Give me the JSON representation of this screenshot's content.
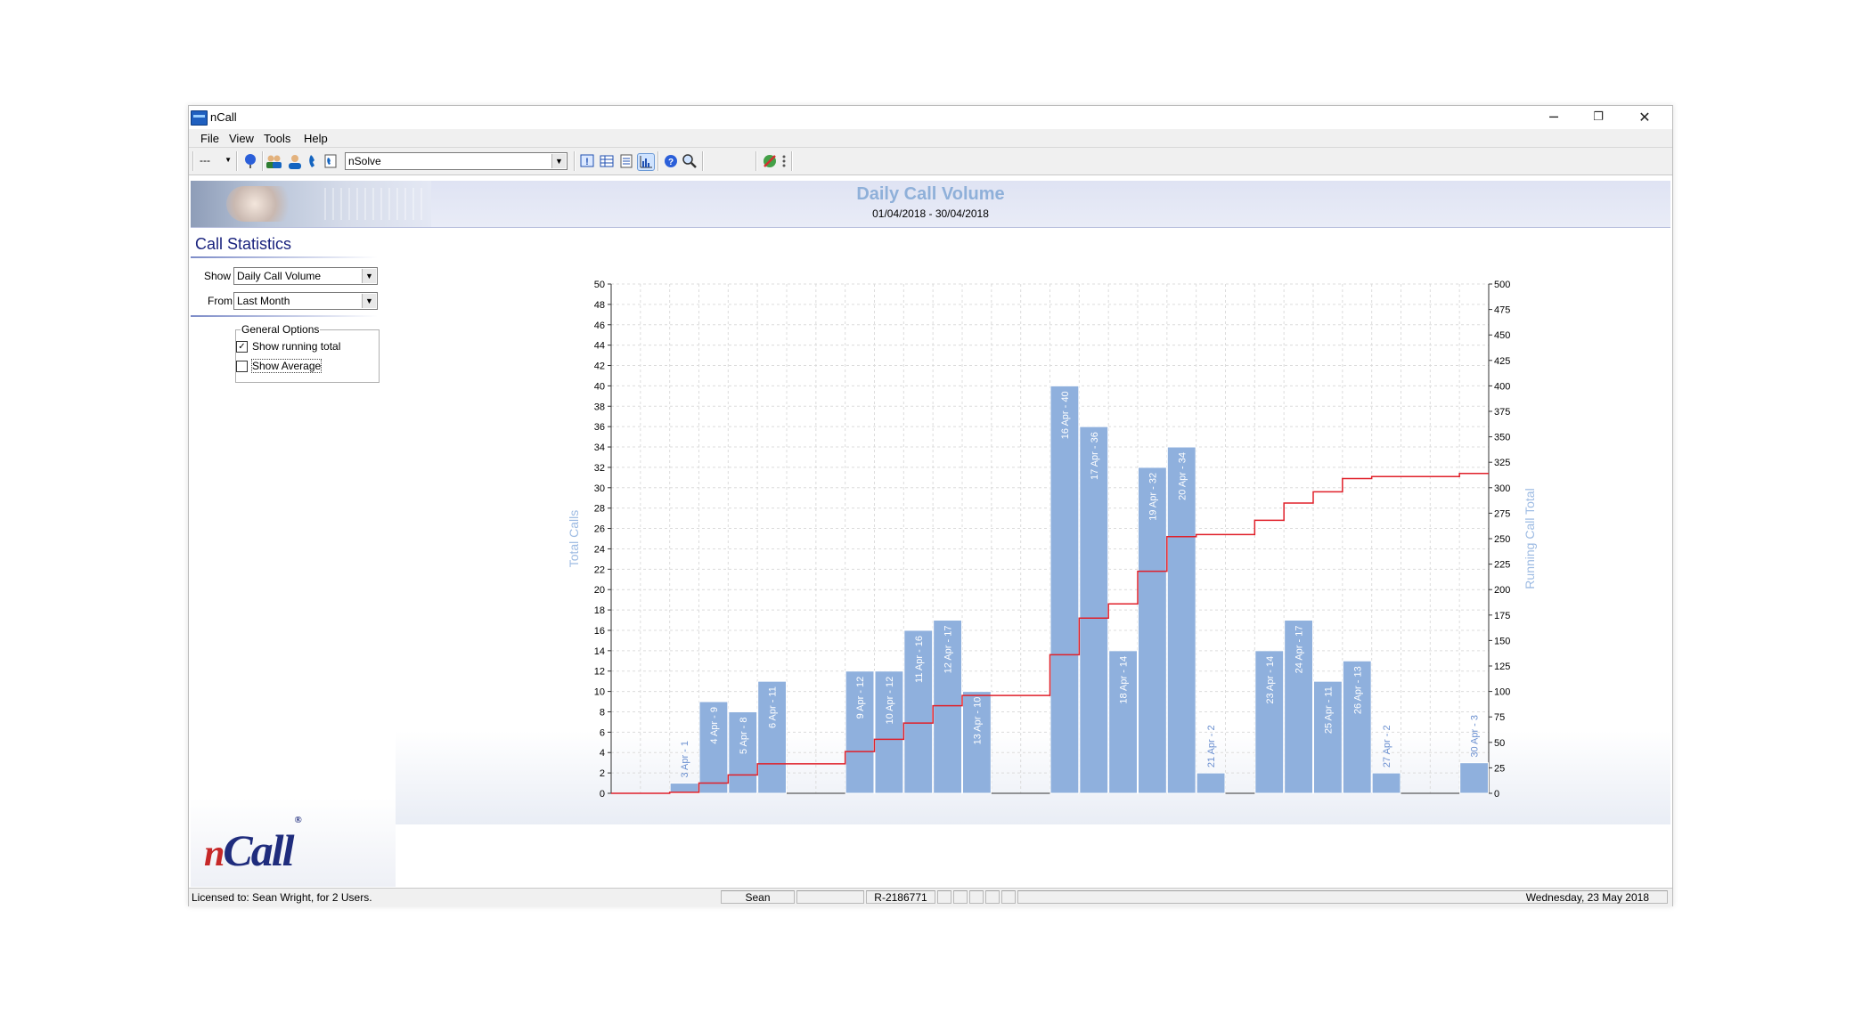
{
  "window": {
    "title": "nCall",
    "controls": {
      "minimize": "─",
      "restore": "❐",
      "close": "✕"
    }
  },
  "menu": [
    "File",
    "View",
    "Tools",
    "Help"
  ],
  "toolbar": {
    "combo_small": "---",
    "company_select": "nSolve"
  },
  "header": {
    "title": "Daily Call Volume",
    "date_range": "01/04/2018 - 30/04/2018"
  },
  "panel": {
    "title": "Call Statistics",
    "show_label": "Show",
    "show_value": "Daily Call Volume",
    "from_label": "From",
    "from_value": "Last Month",
    "group_title": "General Options",
    "running_total_label": "Show running total",
    "running_total_checked": true,
    "average_label": "Show Average",
    "average_checked": false,
    "logo_text": "Call",
    "logo_n": "n",
    "logo_reg": "®"
  },
  "chart_data": {
    "type": "bar",
    "ylabel": "Total Calls",
    "y2label": "Running Call Total",
    "ylim": [
      0,
      50
    ],
    "y2lim": [
      0,
      500
    ],
    "y_ticks": [
      0,
      2,
      4,
      6,
      8,
      10,
      12,
      14,
      16,
      18,
      20,
      22,
      24,
      26,
      28,
      30,
      32,
      34,
      36,
      38,
      40,
      42,
      44,
      46,
      48,
      50
    ],
    "y2_ticks": [
      0,
      25,
      50,
      75,
      100,
      125,
      150,
      175,
      200,
      225,
      250,
      275,
      300,
      325,
      350,
      375,
      400,
      425,
      450,
      475,
      500
    ],
    "grid": true,
    "bar_color": "#8fb0dd",
    "line_color": "#e0202a",
    "days": 30,
    "bars": [
      {
        "day": 3,
        "label": "3 Apr - 1",
        "value": 1
      },
      {
        "day": 4,
        "label": "4 Apr - 9",
        "value": 9
      },
      {
        "day": 5,
        "label": "5 Apr - 8",
        "value": 8
      },
      {
        "day": 6,
        "label": "6 Apr - 11",
        "value": 11
      },
      {
        "day": 9,
        "label": "9 Apr - 12",
        "value": 12
      },
      {
        "day": 10,
        "label": "10 Apr - 12",
        "value": 12
      },
      {
        "day": 11,
        "label": "11 Apr - 16",
        "value": 16
      },
      {
        "day": 12,
        "label": "12 Apr - 17",
        "value": 17
      },
      {
        "day": 13,
        "label": "13 Apr - 10",
        "value": 10
      },
      {
        "day": 16,
        "label": "16 Apr - 40",
        "value": 40
      },
      {
        "day": 17,
        "label": "17 Apr - 36",
        "value": 36
      },
      {
        "day": 18,
        "label": "18 Apr - 14",
        "value": 14
      },
      {
        "day": 19,
        "label": "19 Apr - 32",
        "value": 32
      },
      {
        "day": 20,
        "label": "20 Apr - 34",
        "value": 34
      },
      {
        "day": 21,
        "label": "21 Apr - 2",
        "value": 2
      },
      {
        "day": 23,
        "label": "23 Apr - 14",
        "value": 14
      },
      {
        "day": 24,
        "label": "24 Apr - 17",
        "value": 17
      },
      {
        "day": 25,
        "label": "25 Apr - 11",
        "value": 11
      },
      {
        "day": 26,
        "label": "26 Apr - 13",
        "value": 13
      },
      {
        "day": 27,
        "label": "27 Apr - 2",
        "value": 2
      },
      {
        "day": 30,
        "label": "30 Apr - 3",
        "value": 3
      }
    ]
  },
  "status": {
    "license": "Licensed to: Sean Wright, for 2 Users.",
    "user": "Sean",
    "ref": "R-2186771",
    "date": "Wednesday, 23 May 2018"
  },
  "colors": {
    "header_title": "#8fb0d9",
    "panel_title": "#1a237e",
    "accent": "#7d8cc8"
  }
}
